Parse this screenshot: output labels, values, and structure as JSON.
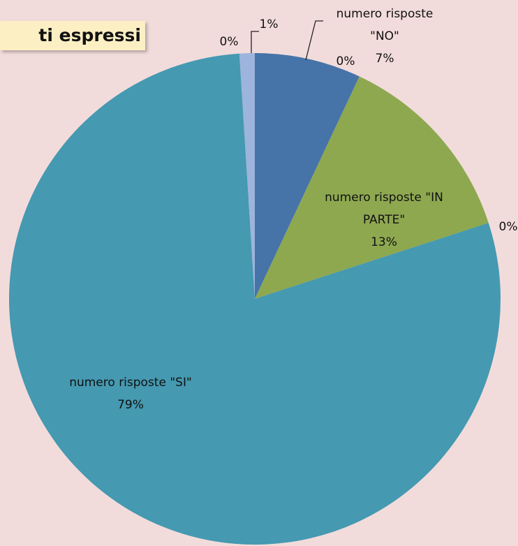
{
  "chart_data": {
    "type": "pie",
    "title": "ti espressi",
    "categories": [
      "numero risposte \"NO\"",
      null,
      "numero risposte \"IN PARTE\"",
      null,
      "numero risposte \"SI\"",
      null,
      null
    ],
    "values": [
      7,
      0,
      13,
      0,
      79,
      0,
      1
    ],
    "value_labels": [
      "7%",
      "0%",
      "13%",
      "0%",
      "79%",
      "0%",
      "1%"
    ],
    "colors": [
      "#4674a8",
      "#bf504d",
      "#8ea850",
      "#7d60a0",
      "#4599b1",
      "#f79646",
      "#9db4dc"
    ]
  }
}
